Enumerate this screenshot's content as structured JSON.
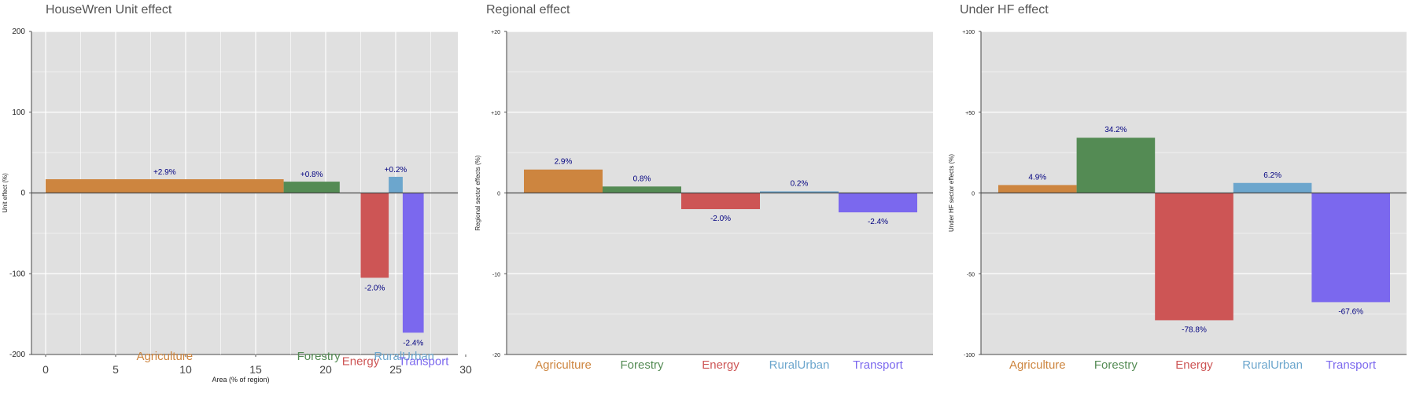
{
  "colors": {
    "Agriculture": "#cd853f",
    "Forestry": "#548b54",
    "Energy": "#cd5555",
    "RuralUrban": "#6ca6cd",
    "Transport": "#7b68ee",
    "panel_bg": "#e0e0e0",
    "grid": "#ffffff",
    "zero_line": "#444444",
    "value_label": "#000080",
    "title": "#555555"
  },
  "chart_data": [
    {
      "type": "bar",
      "title": "HouseWren Unit effect",
      "xlabel": "Area (% of region)",
      "ylabel": "Unit effect (%)",
      "xlim": [
        -1,
        30
      ],
      "ylim": [
        -200,
        200
      ],
      "yticks": [
        -200,
        -100,
        0,
        100,
        200
      ],
      "ytick_labels": [
        "-200",
        "-100",
        "0",
        "100",
        "200"
      ],
      "xticks": [
        0,
        5,
        10,
        15,
        20,
        25,
        30
      ],
      "xtick_labels": [
        "0",
        "5",
        "10",
        "15",
        "20",
        "25",
        "30"
      ],
      "bars": [
        {
          "name": "Agriculture",
          "x_start": 0,
          "x_end": 17,
          "value": 17,
          "label": "+2.9%"
        },
        {
          "name": "Forestry",
          "x_start": 17,
          "x_end": 21,
          "value": 14,
          "label": "+0.8%"
        },
        {
          "name": "Energy",
          "x_start": 22.5,
          "x_end": 24.5,
          "value": -105,
          "label": "-2.0%"
        },
        {
          "name": "RuralUrban",
          "x_start": 24.5,
          "x_end": 25.5,
          "value": 20,
          "label": "+0.2%"
        },
        {
          "name": "Transport",
          "x_start": 25.5,
          "x_end": 27,
          "value": -173,
          "label": "-2.4%"
        }
      ],
      "category_labels": [
        {
          "name": "Agriculture",
          "text": "Agriculture",
          "x": 8.5,
          "y": -207
        },
        {
          "name": "Forestry",
          "text": "Forestry",
          "x": 19.5,
          "y": -207
        },
        {
          "name": "Energy",
          "text": "Energy",
          "x": 22.5,
          "y": -213
        },
        {
          "name": "RuralUrban",
          "text": "RuralUrban",
          "x": 25.6,
          "y": -207
        },
        {
          "name": "Transport",
          "text": "Transport",
          "x": 27,
          "y": -213
        }
      ]
    },
    {
      "type": "bar",
      "title": "Regional effect",
      "xlabel": "",
      "ylabel": "Regional sector effects (%)",
      "ylim": [
        -20,
        20
      ],
      "yticks": [
        -20,
        -10,
        0,
        10,
        20
      ],
      "ytick_labels": [
        "-20",
        "-10",
        "0",
        "+10",
        "+20"
      ],
      "categories": [
        "Agriculture",
        "Forestry",
        "Energy",
        "RuralUrban",
        "Transport"
      ],
      "values": [
        2.9,
        0.8,
        -2.0,
        0.2,
        -2.4
      ],
      "value_labels": [
        "2.9%",
        "0.8%",
        "-2.0%",
        "0.2%",
        "-2.4%"
      ]
    },
    {
      "type": "bar",
      "title": "Under HF effect",
      "xlabel": "",
      "ylabel": "Under HF sector effects (%)",
      "ylim": [
        -100,
        100
      ],
      "yticks": [
        -100,
        -50,
        0,
        50,
        100
      ],
      "ytick_labels": [
        "-100",
        "-50",
        "0",
        "+50",
        "+100"
      ],
      "categories": [
        "Agriculture",
        "Forestry",
        "Energy",
        "RuralUrban",
        "Transport"
      ],
      "values": [
        4.9,
        34.2,
        -78.8,
        6.2,
        -67.6
      ],
      "value_labels": [
        "4.9%",
        "34.2%",
        "-78.8%",
        "6.2%",
        "-67.6%"
      ]
    }
  ]
}
